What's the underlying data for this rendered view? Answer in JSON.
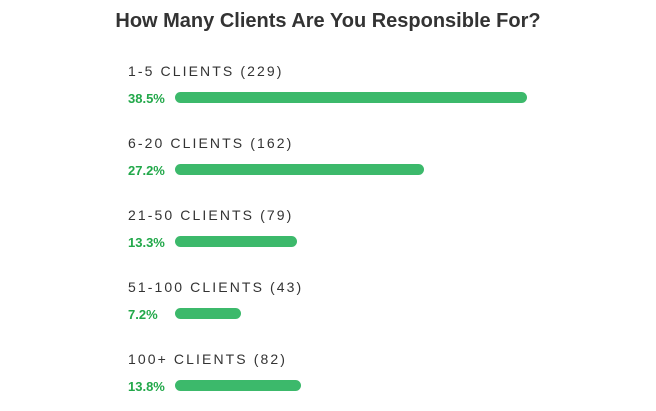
{
  "colors": {
    "bar": "#3cb96b",
    "percent_text": "#22a84a",
    "text": "#333333"
  },
  "chart_data": {
    "type": "bar",
    "orientation": "horizontal",
    "title": "How Many Clients Are You Responsible For?",
    "categories": [
      "1-5 CLIENTS (229)",
      "6-20 CLIENTS (162)",
      "21-50 CLIENTS (79)",
      "51-100 CLIENTS (43)",
      "100+ CLIENTS (82)"
    ],
    "values": [
      38.5,
      27.2,
      13.3,
      7.2,
      13.8
    ],
    "value_labels": [
      "38.5%",
      "27.2%",
      "13.3%",
      "7.2%",
      "13.8%"
    ],
    "xlim": [
      0,
      38.5
    ],
    "grid": false,
    "legend": "none"
  }
}
